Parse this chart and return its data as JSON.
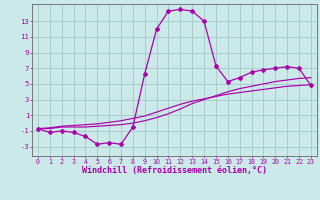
{
  "background_color": "#cce9e9",
  "grid_color": "#aacccc",
  "line_color": "#aa00aa",
  "marker_color": "#aa00aa",
  "xlabel": "Windchill (Refroidissement éolien,°C)",
  "xlabel_fontsize": 6.0,
  "yticks": [
    -3,
    -1,
    1,
    3,
    5,
    7,
    9,
    11,
    13
  ],
  "xticks": [
    0,
    1,
    2,
    3,
    4,
    5,
    6,
    7,
    8,
    9,
    10,
    11,
    12,
    13,
    14,
    15,
    16,
    17,
    18,
    19,
    20,
    21,
    22,
    23
  ],
  "xlim": [
    -0.5,
    23.5
  ],
  "ylim": [
    -4.2,
    15.2
  ],
  "curve1_x": [
    0,
    1,
    2,
    3,
    4,
    5,
    6,
    7,
    8,
    9,
    10,
    11,
    12,
    13,
    14,
    15,
    16,
    17,
    18,
    19,
    20,
    21,
    22,
    23
  ],
  "curve1_y": [
    -0.7,
    -1.2,
    -1.0,
    -1.2,
    -1.7,
    -2.7,
    -2.5,
    -2.7,
    -0.5,
    6.3,
    12.0,
    14.3,
    14.5,
    14.3,
    13.0,
    7.3,
    5.3,
    5.8,
    6.5,
    6.8,
    7.0,
    7.2,
    7.0,
    4.8
  ],
  "curve2_x": [
    0,
    1,
    2,
    3,
    4,
    5,
    6,
    7,
    8,
    9,
    10,
    11,
    12,
    13,
    14,
    15,
    16,
    17,
    18,
    19,
    20,
    21,
    22,
    23
  ],
  "curve2_y": [
    -0.7,
    -0.7,
    -0.5,
    -0.5,
    -0.5,
    -0.4,
    -0.3,
    -0.2,
    0.0,
    0.3,
    0.7,
    1.2,
    1.8,
    2.5,
    3.0,
    3.5,
    4.0,
    4.4,
    4.7,
    5.0,
    5.3,
    5.5,
    5.7,
    5.8
  ],
  "curve3_x": [
    0,
    1,
    2,
    3,
    4,
    5,
    6,
    7,
    8,
    9,
    10,
    11,
    12,
    13,
    14,
    15,
    16,
    17,
    18,
    19,
    20,
    21,
    22,
    23
  ],
  "curve3_y": [
    -0.7,
    -0.6,
    -0.4,
    -0.3,
    -0.2,
    -0.1,
    0.1,
    0.3,
    0.6,
    0.9,
    1.4,
    1.9,
    2.4,
    2.8,
    3.1,
    3.4,
    3.7,
    3.9,
    4.1,
    4.3,
    4.5,
    4.7,
    4.8,
    4.9
  ],
  "tick_fontsize": 4.8,
  "ytick_fontsize": 5.2
}
